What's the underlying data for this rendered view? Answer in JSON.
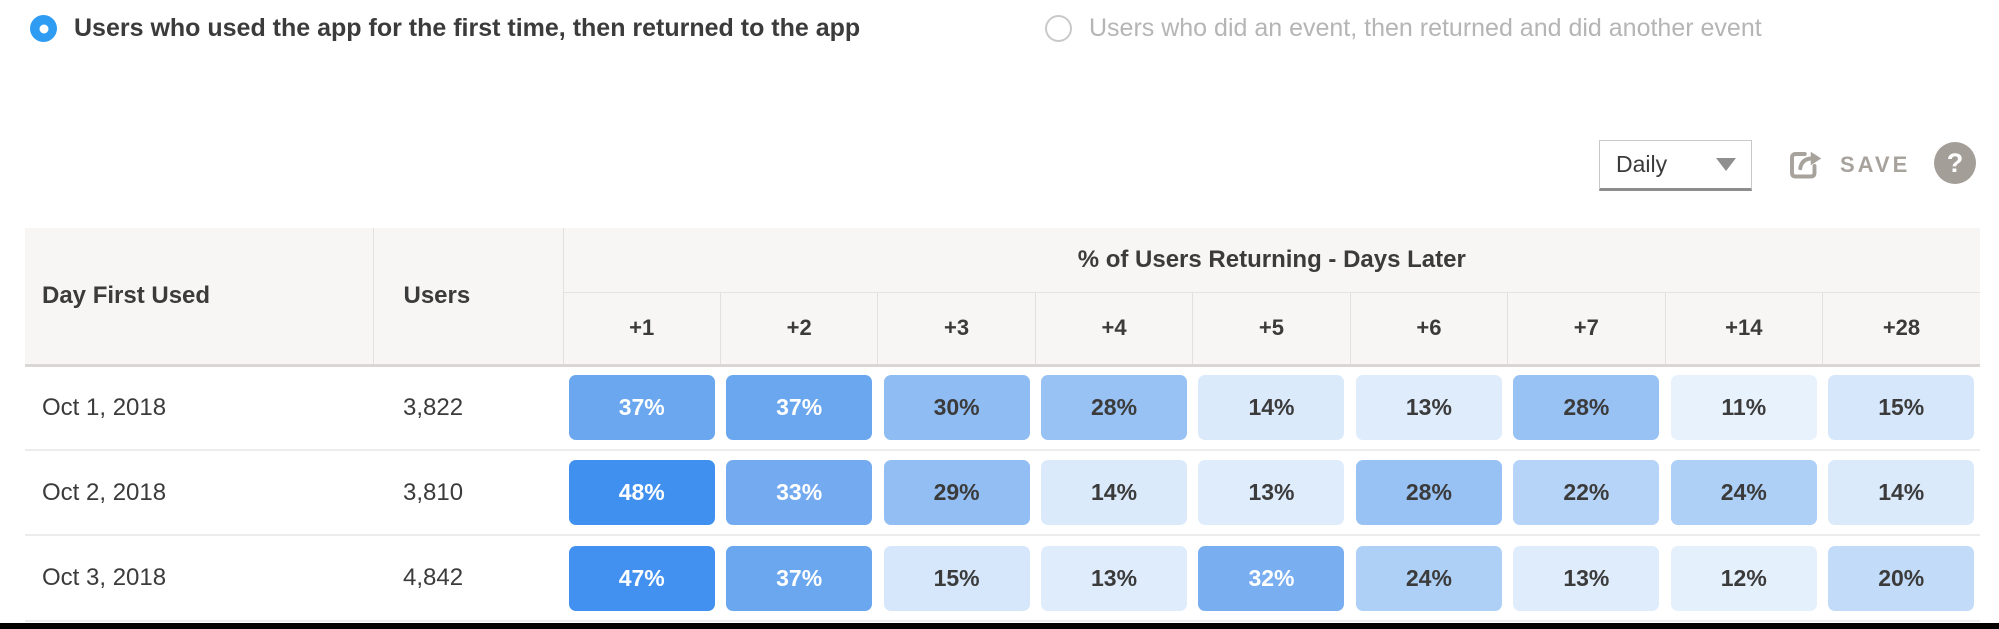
{
  "radio_group": {
    "options": [
      {
        "label": "Users who used the app for the first time, then returned to the app",
        "selected": true
      },
      {
        "label": "Users who did an event, then returned and did another event",
        "selected": false
      }
    ]
  },
  "toolbar": {
    "interval_value": "Daily",
    "save_label": "SAVE",
    "help_label": "?"
  },
  "table": {
    "columns": {
      "day_first_used": "Day First Used",
      "users": "Users"
    },
    "group_header": "% of Users Returning - Days Later",
    "day_offsets": [
      "+1",
      "+2",
      "+3",
      "+4",
      "+5",
      "+6",
      "+7",
      "+14",
      "+28"
    ],
    "rows": [
      {
        "date": "Oct 1, 2018",
        "users": "3,822",
        "cells": [
          {
            "value": "37%",
            "bg": "#6aa7ef",
            "fg": "#ffffff"
          },
          {
            "value": "37%",
            "bg": "#6aa7ef",
            "fg": "#ffffff"
          },
          {
            "value": "30%",
            "bg": "#8fbcf3",
            "fg": "#3b3b3b"
          },
          {
            "value": "28%",
            "bg": "#98c1f4",
            "fg": "#3b3b3b"
          },
          {
            "value": "14%",
            "bg": "#dbeafb",
            "fg": "#3b3b3b"
          },
          {
            "value": "13%",
            "bg": "#dfecfc",
            "fg": "#3b3b3b"
          },
          {
            "value": "28%",
            "bg": "#98c1f4",
            "fg": "#3b3b3b"
          },
          {
            "value": "11%",
            "bg": "#e8f2fd",
            "fg": "#3b3b3b"
          },
          {
            "value": "15%",
            "bg": "#d7e7fb",
            "fg": "#3b3b3b"
          }
        ]
      },
      {
        "date": "Oct 2, 2018",
        "users": "3,810",
        "cells": [
          {
            "value": "48%",
            "bg": "#4090f0",
            "fg": "#ffffff"
          },
          {
            "value": "33%",
            "bg": "#74abf0",
            "fg": "#ffffff"
          },
          {
            "value": "29%",
            "bg": "#93bef3",
            "fg": "#3b3b3b"
          },
          {
            "value": "14%",
            "bg": "#dbeafb",
            "fg": "#3b3b3b"
          },
          {
            "value": "13%",
            "bg": "#dfecfc",
            "fg": "#3b3b3b"
          },
          {
            "value": "28%",
            "bg": "#98c1f4",
            "fg": "#3b3b3b"
          },
          {
            "value": "22%",
            "bg": "#b6d4f7",
            "fg": "#3b3b3b"
          },
          {
            "value": "24%",
            "bg": "#aed0f6",
            "fg": "#3b3b3b"
          },
          {
            "value": "14%",
            "bg": "#dbeafb",
            "fg": "#3b3b3b"
          }
        ]
      },
      {
        "date": "Oct 3, 2018",
        "users": "4,842",
        "cells": [
          {
            "value": "47%",
            "bg": "#4291f0",
            "fg": "#ffffff"
          },
          {
            "value": "37%",
            "bg": "#6aa7ef",
            "fg": "#ffffff"
          },
          {
            "value": "15%",
            "bg": "#d7e7fb",
            "fg": "#3b3b3b"
          },
          {
            "value": "13%",
            "bg": "#dfecfc",
            "fg": "#3b3b3b"
          },
          {
            "value": "32%",
            "bg": "#79aef1",
            "fg": "#ffffff"
          },
          {
            "value": "24%",
            "bg": "#aed0f6",
            "fg": "#3b3b3b"
          },
          {
            "value": "13%",
            "bg": "#dfecfc",
            "fg": "#3b3b3b"
          },
          {
            "value": "12%",
            "bg": "#e5f0fd",
            "fg": "#3b3b3b"
          },
          {
            "value": "20%",
            "bg": "#c2dbf8",
            "fg": "#3b3b3b"
          }
        ]
      }
    ]
  },
  "colors": {
    "accent_blue": "#2f9cf4",
    "heat_max": "#4090f0",
    "heat_min": "#e8f2fd",
    "header_bg": "#f7f6f4",
    "muted_gray": "#a8a29d"
  }
}
